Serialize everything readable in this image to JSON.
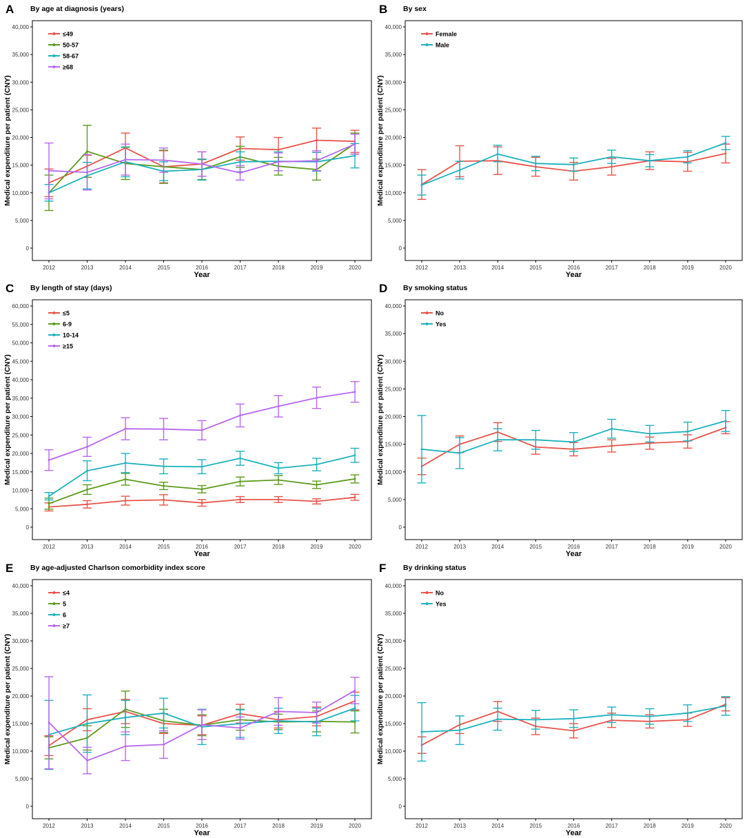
{
  "figure_xlabel": "Year",
  "figure_ylabel": "Medical expenditure per patient (CNY)",
  "colors": {
    "red": "#E8524A",
    "olive": "#5B9A1B",
    "teal": "#1BB1BE",
    "purple": "#B766F1",
    "axis": "#000000"
  },
  "chart_data": [
    {
      "panel": "A",
      "type": "line",
      "title": "By age at diagnosis (years)",
      "xlabel": "Year",
      "ylabel": "Medical expenditure per patient (CNY)",
      "x": [
        "2012",
        "2013",
        "2014",
        "2015",
        "2016",
        "2017",
        "2018",
        "2019",
        "2020"
      ],
      "ylim": [
        0,
        40000
      ],
      "yticks": [
        0,
        5000,
        10000,
        15000,
        20000,
        25000,
        30000,
        35000,
        40000
      ],
      "ytick_labels": [
        "0",
        "5,000",
        "10,000",
        "15,000",
        "20,000",
        "25,000",
        "30,000",
        "35,000",
        "40,000"
      ],
      "legend_position": "top-left",
      "series": [
        {
          "name": "≤49",
          "color": "#E8524A",
          "values": [
            11800,
            14800,
            18100,
            14700,
            15200,
            18000,
            17800,
            19500,
            19300
          ],
          "lower": [
            9300,
            12800,
            15400,
            11800,
            13000,
            15900,
            15600,
            17300,
            17300
          ],
          "upper": [
            14300,
            16800,
            20800,
            17600,
            17400,
            20100,
            20000,
            21700,
            21300
          ]
        },
        {
          "name": "50-57",
          "color": "#5B9A1B",
          "values": [
            10000,
            17500,
            15300,
            14700,
            14200,
            16500,
            14800,
            14200,
            18900
          ],
          "lower": [
            6800,
            12800,
            12400,
            11700,
            12400,
            14600,
            13200,
            12300,
            17000
          ],
          "upper": [
            13200,
            22200,
            18200,
            17700,
            16000,
            18400,
            16400,
            16100,
            20800
          ]
        },
        {
          "name": "58-67",
          "color": "#1BB1BE",
          "values": [
            10000,
            13100,
            15600,
            13900,
            14200,
            15600,
            15700,
            15600,
            16700
          ],
          "lower": [
            8500,
            10700,
            12900,
            12200,
            12300,
            13800,
            14000,
            13900,
            14500
          ],
          "upper": [
            11500,
            15500,
            18300,
            15600,
            16100,
            17400,
            17400,
            17300,
            18900
          ]
        },
        {
          "name": "≥68",
          "color": "#B766F1",
          "values": [
            14000,
            13700,
            16000,
            15900,
            15200,
            13600,
            15600,
            15800,
            18800
          ],
          "lower": [
            8900,
            10500,
            13200,
            13700,
            13000,
            12300,
            14000,
            14000,
            17000
          ],
          "upper": [
            19000,
            16900,
            18800,
            18100,
            17400,
            14900,
            17200,
            17600,
            20600
          ]
        }
      ]
    },
    {
      "panel": "B",
      "type": "line",
      "title": "By sex",
      "xlabel": "Year",
      "ylabel": "Medical expenditure per patient (CNY)",
      "x": [
        "2012",
        "2013",
        "2014",
        "2015",
        "2016",
        "2017",
        "2018",
        "2019",
        "2020"
      ],
      "ylim": [
        0,
        40000
      ],
      "yticks": [
        0,
        5000,
        10000,
        15000,
        20000,
        25000,
        30000,
        35000,
        40000
      ],
      "ytick_labels": [
        "0",
        "5,000",
        "10,000",
        "15,000",
        "20,000",
        "25,000",
        "30,000",
        "35,000",
        "40,000"
      ],
      "legend_position": "top-left",
      "series": [
        {
          "name": "Female",
          "color": "#E8524A",
          "values": [
            11500,
            15700,
            15800,
            14700,
            13900,
            14700,
            15800,
            15600,
            17100
          ],
          "lower": [
            8800,
            12900,
            13300,
            13000,
            12300,
            13200,
            14200,
            13900,
            15400
          ],
          "upper": [
            14200,
            18500,
            18300,
            16400,
            15500,
            16200,
            17400,
            17300,
            18800
          ]
        },
        {
          "name": "Male",
          "color": "#1BB1BE",
          "values": [
            11400,
            14100,
            17000,
            15300,
            15100,
            16500,
            15800,
            16500,
            19000
          ],
          "lower": [
            9600,
            12500,
            15600,
            14000,
            13900,
            15300,
            14700,
            15400,
            17800
          ],
          "upper": [
            13200,
            15700,
            18600,
            16600,
            16300,
            17700,
            16900,
            17600,
            20200
          ]
        }
      ]
    },
    {
      "panel": "C",
      "type": "line",
      "title": "By length of stay (days)",
      "xlabel": "Year",
      "ylabel": "Medical expenditure per patient (CNY)",
      "x": [
        "2012",
        "2013",
        "2014",
        "2015",
        "2016",
        "2017",
        "2018",
        "2019",
        "2020"
      ],
      "ylim": [
        0,
        60000
      ],
      "yticks": [
        0,
        5000,
        10000,
        15000,
        20000,
        25000,
        30000,
        35000,
        40000,
        45000,
        50000,
        55000,
        60000
      ],
      "ytick_labels": [
        "0",
        "5,000",
        "10,000",
        "15,000",
        "20,000",
        "25,000",
        "30,000",
        "35,000",
        "40,000",
        "45,000",
        "50,000",
        "55,000",
        "60,000"
      ],
      "legend_position": "top-left",
      "series": [
        {
          "name": "≤5",
          "color": "#E8524A",
          "values": [
            5500,
            6200,
            7200,
            7400,
            6600,
            7500,
            7500,
            7000,
            8100
          ],
          "lower": [
            4400,
            5200,
            6000,
            6000,
            5700,
            6700,
            6700,
            6300,
            7300
          ],
          "upper": [
            6600,
            7200,
            8400,
            8800,
            7500,
            8300,
            8300,
            7700,
            8900
          ]
        },
        {
          "name": "6-9",
          "color": "#5B9A1B",
          "values": [
            6400,
            10200,
            13000,
            11200,
            10300,
            12400,
            12800,
            11500,
            13100
          ],
          "lower": [
            4900,
            8900,
            11400,
            10200,
            9300,
            11200,
            11600,
            10500,
            12000
          ],
          "upper": [
            7900,
            11500,
            14600,
            12200,
            11300,
            13600,
            14000,
            12500,
            14200
          ]
        },
        {
          "name": "10-14",
          "color": "#1BB1BE",
          "values": [
            8400,
            15300,
            17400,
            16500,
            16400,
            18700,
            16000,
            17000,
            19500
          ],
          "lower": [
            7400,
            12600,
            14800,
            14500,
            14500,
            16800,
            14500,
            15300,
            17600
          ],
          "upper": [
            9400,
            18000,
            20000,
            18500,
            18300,
            20600,
            17500,
            18700,
            21400
          ]
        },
        {
          "name": "≥15",
          "color": "#B766F1",
          "values": [
            18200,
            21800,
            26700,
            26600,
            26300,
            30300,
            32800,
            35100,
            36700
          ],
          "lower": [
            15400,
            19200,
            23700,
            23700,
            23700,
            27200,
            29900,
            32200,
            33900
          ],
          "upper": [
            21000,
            24400,
            29700,
            29500,
            28900,
            33400,
            35700,
            38000,
            39500
          ]
        }
      ]
    },
    {
      "panel": "D",
      "type": "line",
      "title": "By smoking status",
      "xlabel": "Year",
      "ylabel": "Medical expenditure per patient (CNY)",
      "x": [
        "2012",
        "2013",
        "2014",
        "2015",
        "2016",
        "2017",
        "2018",
        "2019",
        "2020"
      ],
      "ylim": [
        0,
        40000
      ],
      "yticks": [
        0,
        5000,
        10000,
        15000,
        20000,
        25000,
        30000,
        35000,
        40000
      ],
      "ytick_labels": [
        "0",
        "5,000",
        "10,000",
        "15,000",
        "20,000",
        "25,000",
        "30,000",
        "35,000",
        "40,000"
      ],
      "legend_position": "top-left",
      "series": [
        {
          "name": "No",
          "color": "#E8524A",
          "values": [
            11000,
            15000,
            17200,
            14500,
            14100,
            14700,
            15200,
            15500,
            18000
          ],
          "lower": [
            9500,
            13500,
            15500,
            13200,
            12900,
            13600,
            14100,
            14300,
            16900
          ],
          "upper": [
            12500,
            16500,
            18900,
            15800,
            15300,
            15800,
            16300,
            16700,
            19100
          ]
        },
        {
          "name": "Yes",
          "color": "#1BB1BE",
          "values": [
            14100,
            13400,
            15800,
            15800,
            15400,
            17800,
            16900,
            17300,
            19200
          ],
          "lower": [
            8000,
            10600,
            13800,
            14100,
            13700,
            16100,
            15400,
            15600,
            17300
          ],
          "upper": [
            20200,
            16200,
            17800,
            17500,
            17100,
            19500,
            18400,
            19000,
            21100
          ]
        }
      ]
    },
    {
      "panel": "E",
      "type": "line",
      "title": "By age-adjusted Charlson comorbidity index score",
      "xlabel": "Year",
      "ylabel": "Medical expenditure per patient (CNY)",
      "x": [
        "2012",
        "2013",
        "2014",
        "2015",
        "2016",
        "2017",
        "2018",
        "2019",
        "2020"
      ],
      "ylim": [
        0,
        40000
      ],
      "yticks": [
        0,
        5000,
        10000,
        15000,
        20000,
        25000,
        30000,
        35000,
        40000
      ],
      "ytick_labels": [
        "0",
        "5,000",
        "10,000",
        "15,000",
        "20,000",
        "25,000",
        "30,000",
        "35,000",
        "40,000"
      ],
      "legend_position": "top-left",
      "series": [
        {
          "name": "≤4",
          "color": "#E8524A",
          "values": [
            11000,
            15700,
            17200,
            15000,
            14700,
            16800,
            15700,
            16300,
            19100
          ],
          "lower": [
            9200,
            13700,
            15000,
            13200,
            13000,
            15100,
            14200,
            14600,
            17500
          ],
          "upper": [
            12800,
            17700,
            19400,
            16800,
            16400,
            18500,
            17200,
            18000,
            20700
          ]
        },
        {
          "name": "5",
          "color": "#5B9A1B",
          "values": [
            10600,
            12400,
            17600,
            15500,
            14700,
            15700,
            15300,
            15400,
            15300
          ],
          "lower": [
            8600,
            10200,
            14300,
            13400,
            12800,
            13800,
            13900,
            13500,
            13300
          ],
          "upper": [
            12600,
            14600,
            20900,
            17600,
            16600,
            17600,
            16700,
            17300,
            17300
          ]
        },
        {
          "name": "6",
          "color": "#1BB1BE",
          "values": [
            13000,
            15000,
            16100,
            16900,
            14400,
            15000,
            15500,
            15300,
            17800
          ],
          "lower": [
            6700,
            9800,
            13000,
            14200,
            11200,
            12500,
            13200,
            12800,
            15500
          ],
          "upper": [
            19200,
            20200,
            19200,
            19600,
            17600,
            17500,
            17800,
            17800,
            20100
          ]
        },
        {
          "name": "≥7",
          "color": "#B766F1",
          "values": [
            15200,
            8300,
            10900,
            11200,
            14800,
            14200,
            17200,
            17000,
            21000
          ],
          "lower": [
            6800,
            5900,
            8300,
            8700,
            12100,
            12200,
            14700,
            15100,
            18600
          ],
          "upper": [
            23500,
            10700,
            13500,
            13700,
            17500,
            16200,
            19700,
            18900,
            23400
          ]
        }
      ]
    },
    {
      "panel": "F",
      "type": "line",
      "title": "By drinking status",
      "xlabel": "Year",
      "ylabel": "Medical expenditure per patient (CNY)",
      "x": [
        "2012",
        "2013",
        "2014",
        "2015",
        "2016",
        "2017",
        "2018",
        "2019",
        "2020"
      ],
      "ylim": [
        0,
        40000
      ],
      "yticks": [
        0,
        5000,
        10000,
        15000,
        20000,
        25000,
        30000,
        35000,
        40000
      ],
      "ytick_labels": [
        "0",
        "5,000",
        "10,000",
        "15,000",
        "20,000",
        "25,000",
        "30,000",
        "35,000",
        "40,000"
      ],
      "legend_position": "top-left",
      "series": [
        {
          "name": "No",
          "color": "#E8524A",
          "values": [
            11100,
            14800,
            17200,
            14500,
            13700,
            15600,
            15400,
            15700,
            18500
          ],
          "lower": [
            9600,
            13200,
            15400,
            13000,
            12400,
            14300,
            14200,
            14500,
            17300
          ],
          "upper": [
            12600,
            16400,
            19000,
            16000,
            15000,
            16900,
            16600,
            16900,
            19700
          ]
        },
        {
          "name": "Yes",
          "color": "#1BB1BE",
          "values": [
            13500,
            13800,
            15800,
            15700,
            15900,
            16600,
            16300,
            16900,
            18200
          ],
          "lower": [
            8200,
            11200,
            13800,
            14000,
            14300,
            15200,
            14900,
            15400,
            16500
          ],
          "upper": [
            18800,
            16400,
            17800,
            17400,
            17500,
            18000,
            17700,
            18400,
            19900
          ]
        }
      ]
    }
  ]
}
